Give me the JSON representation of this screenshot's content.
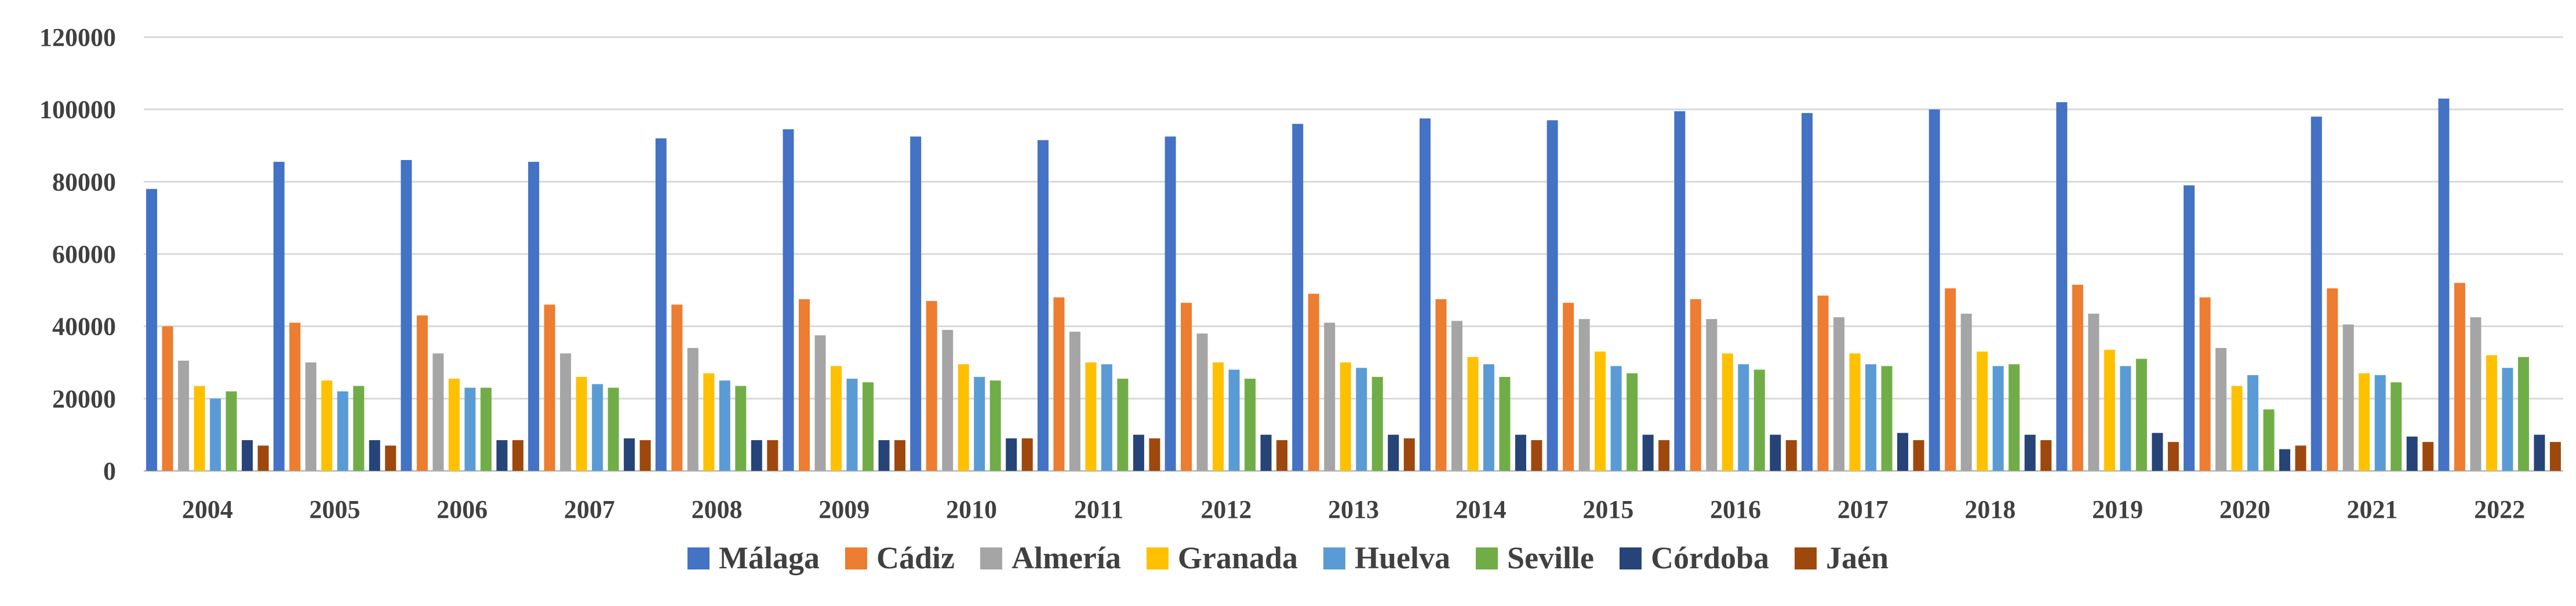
{
  "chart_data": {
    "type": "bar",
    "title": "",
    "xlabel": "",
    "ylabel": "",
    "ylim": [
      0,
      120000
    ],
    "yticks": [
      0,
      20000,
      40000,
      60000,
      80000,
      100000,
      120000
    ],
    "grid": true,
    "legend_position": "bottom",
    "categories": [
      "2004",
      "2005",
      "2006",
      "2007",
      "2008",
      "2009",
      "2010",
      "2011",
      "2012",
      "2013",
      "2014",
      "2015",
      "2016",
      "2017",
      "2018",
      "2019",
      "2020",
      "2021",
      "2022"
    ],
    "series": [
      {
        "name": "Málaga",
        "color": "#4472C4",
        "values": [
          78000,
          85500,
          86000,
          85500,
          92000,
          94500,
          92500,
          91500,
          92500,
          96000,
          97500,
          97000,
          99500,
          99000,
          100000,
          102000,
          79000,
          98000,
          103000
        ]
      },
      {
        "name": "Cádiz",
        "color": "#ED7D31",
        "values": [
          40000,
          41000,
          43000,
          46000,
          46000,
          47500,
          47000,
          48000,
          46500,
          49000,
          47500,
          46500,
          47500,
          48500,
          50500,
          51500,
          48000,
          50500,
          52000
        ]
      },
      {
        "name": "Almería",
        "color": "#A5A5A5",
        "values": [
          30500,
          30000,
          32500,
          32500,
          34000,
          37500,
          39000,
          38500,
          38000,
          41000,
          41500,
          42000,
          42000,
          42500,
          43500,
          43500,
          34000,
          40500,
          42500
        ]
      },
      {
        "name": "Granada",
        "color": "#FFC000",
        "values": [
          23500,
          25000,
          25500,
          26000,
          27000,
          29000,
          29500,
          30000,
          30000,
          30000,
          31500,
          33000,
          32500,
          32500,
          33000,
          33500,
          23500,
          27000,
          32000
        ]
      },
      {
        "name": "Huelva",
        "color": "#5B9BD5",
        "values": [
          20000,
          22000,
          23000,
          24000,
          25000,
          25500,
          26000,
          29500,
          28000,
          28500,
          29500,
          29000,
          29500,
          29500,
          29000,
          29000,
          26500,
          26500,
          28500
        ]
      },
      {
        "name": "Seville",
        "color": "#70AD47",
        "values": [
          22000,
          23500,
          23000,
          23000,
          23500,
          24500,
          25000,
          25500,
          25500,
          26000,
          26000,
          27000,
          28000,
          29000,
          29500,
          31000,
          17000,
          24500,
          31500
        ]
      },
      {
        "name": "Córdoba",
        "color": "#264478",
        "values": [
          8500,
          8500,
          8500,
          9000,
          8500,
          8500,
          9000,
          10000,
          10000,
          10000,
          10000,
          10000,
          10000,
          10500,
          10000,
          10500,
          6000,
          9500,
          10000
        ]
      },
      {
        "name": "Jaén",
        "color": "#9E480E",
        "values": [
          7000,
          7000,
          8500,
          8500,
          8500,
          8500,
          9000,
          9000,
          8500,
          9000,
          8500,
          8500,
          8500,
          8500,
          8500,
          8000,
          7000,
          8000,
          8000
        ]
      }
    ]
  }
}
